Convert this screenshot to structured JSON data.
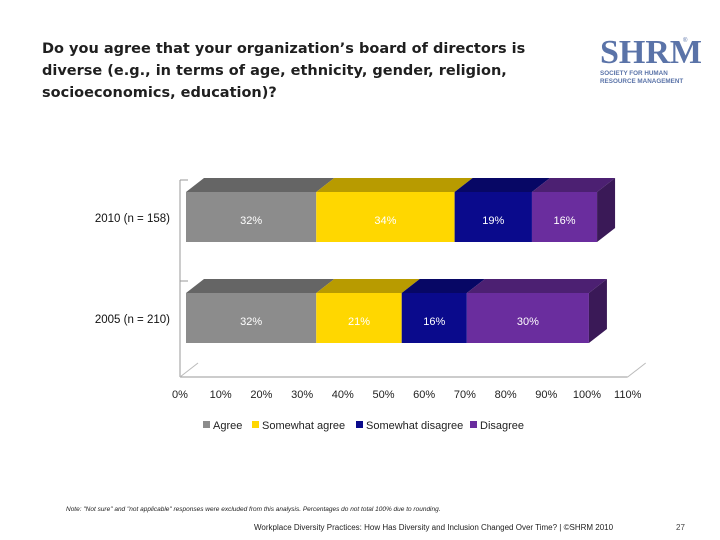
{
  "header": {
    "title": "Do you agree that your organization’s board of directors is diverse (e.g., in terms of age, ethnicity, gender, religion, socioeconomics, education)?"
  },
  "logo": {
    "mark": "SHRM",
    "lines": [
      "SOCIETY FOR HUMAN",
      "RESOURCE MANAGEMENT"
    ]
  },
  "chart_data": {
    "type": "bar",
    "orientation": "horizontal",
    "stacked": true,
    "categories": [
      "2010 (n = 158)",
      "2005 (n = 210)"
    ],
    "series": [
      {
        "name": "Agree",
        "values": [
          32,
          32
        ],
        "color": "#8c8c8c"
      },
      {
        "name": "Somewhat agree",
        "values": [
          34,
          21
        ],
        "color": "#ffd700"
      },
      {
        "name": "Somewhat disagree",
        "values": [
          19,
          16
        ],
        "color": "#0a0a8c"
      },
      {
        "name": "Disagree",
        "values": [
          16,
          30
        ],
        "color": "#6a2d9e"
      }
    ],
    "data_labels": [
      [
        "32%",
        "34%",
        "19%",
        "16%"
      ],
      [
        "32%",
        "21%",
        "16%",
        "30%"
      ]
    ],
    "xlim": [
      0,
      110
    ],
    "xticks": [
      "0%",
      "10%",
      "20%",
      "30%",
      "40%",
      "50%",
      "60%",
      "70%",
      "80%",
      "90%",
      "100%",
      "110%"
    ],
    "legend_position": "bottom",
    "grid": false
  },
  "footnote": "Note: \"Not sure\" and \"not applicable\" responses were excluded from this analysis. Percentages do not total 100% due to rounding.",
  "footer": {
    "text": "Workplace Diversity Practices: How Has Diversity and Inclusion Changed Over Time? | ©SHRM 2010",
    "page": "27"
  }
}
